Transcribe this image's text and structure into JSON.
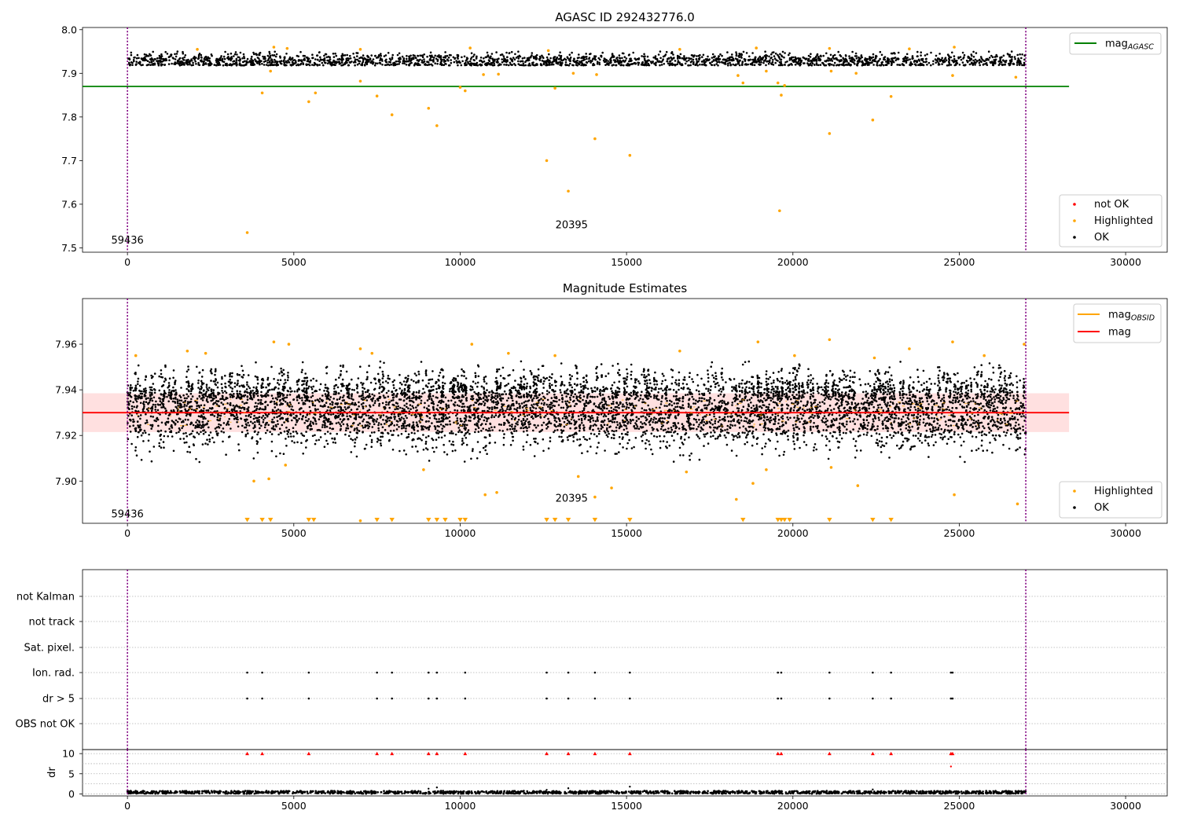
{
  "chart_data": [
    {
      "id": "agasc",
      "type": "scatter",
      "title": "AGASC ID 292432776.0",
      "xlim": [
        -1350,
        31250
      ],
      "ylim": [
        7.49,
        8.005
      ],
      "xticks": [
        0,
        5000,
        10000,
        15000,
        20000,
        25000,
        30000
      ],
      "xtick_labels": [
        "0",
        "5000",
        "10000",
        "15000",
        "20000",
        "25000",
        "30000"
      ],
      "yticks": [
        7.5,
        7.6,
        7.7,
        7.8,
        7.9,
        8.0
      ],
      "ytick_labels": [
        "7.5",
        "7.6",
        "7.7",
        "7.8",
        "7.9",
        "8.0"
      ],
      "ok_band": {
        "x_start": 0,
        "x_end": 27000,
        "y_center": 7.928,
        "y_half_width": 0.009,
        "y_min": 7.918,
        "y_max": 7.95
      },
      "mag_agasc_line": {
        "y": 7.87,
        "x_start": -1350,
        "x_end": 28300,
        "color": "#008000"
      },
      "vlines": [
        0,
        27000
      ],
      "highlighted": [
        [
          3600,
          7.535
        ],
        [
          4050,
          7.855
        ],
        [
          4300,
          7.905
        ],
        [
          5450,
          7.835
        ],
        [
          5650,
          7.855
        ],
        [
          7000,
          7.882
        ],
        [
          7500,
          7.848
        ],
        [
          7950,
          7.805
        ],
        [
          9050,
          7.82
        ],
        [
          9300,
          7.78
        ],
        [
          10000,
          7.868
        ],
        [
          10150,
          7.86
        ],
        [
          10700,
          7.897
        ],
        [
          11150,
          7.898
        ],
        [
          12600,
          7.7
        ],
        [
          12850,
          7.866
        ],
        [
          13250,
          7.63
        ],
        [
          13400,
          7.9
        ],
        [
          14050,
          7.75
        ],
        [
          14100,
          7.897
        ],
        [
          15100,
          7.712
        ],
        [
          18350,
          7.895
        ],
        [
          18500,
          7.878
        ],
        [
          19200,
          7.905
        ],
        [
          19550,
          7.878
        ],
        [
          19600,
          7.585
        ],
        [
          19650,
          7.85
        ],
        [
          19750,
          7.872
        ],
        [
          21100,
          7.762
        ],
        [
          21150,
          7.905
        ],
        [
          21900,
          7.9
        ],
        [
          22400,
          7.793
        ],
        [
          22950,
          7.847
        ],
        [
          24800,
          7.895
        ],
        [
          26700,
          7.891
        ],
        [
          2100,
          7.955
        ],
        [
          4400,
          7.96
        ],
        [
          4800,
          7.957
        ],
        [
          7000,
          7.955
        ],
        [
          10300,
          7.958
        ],
        [
          12650,
          7.952
        ],
        [
          16600,
          7.955
        ],
        [
          18900,
          7.958
        ],
        [
          21100,
          7.957
        ],
        [
          23500,
          7.956
        ],
        [
          24850,
          7.96
        ]
      ],
      "not_ok": [],
      "text_labels": [
        {
          "text": "59436",
          "x": 0,
          "y": 7.51
        },
        {
          "text": "20395",
          "x": 13350,
          "y": 7.545
        }
      ],
      "legend_top": [
        {
          "label": "mag",
          "sub": "AGASC",
          "color": "#008000"
        }
      ],
      "legend_bottom": [
        {
          "label": "not OK",
          "color": "#ff0000"
        },
        {
          "label": "Highlighted",
          "color": "#ffa500"
        },
        {
          "label": "OK",
          "color": "#000000"
        }
      ]
    },
    {
      "id": "estimates",
      "type": "scatter",
      "title": "Magnitude Estimates",
      "xlim": [
        -1350,
        31250
      ],
      "ylim": [
        7.8815,
        7.98
      ],
      "xticks": [
        0,
        5000,
        10000,
        15000,
        20000,
        25000,
        30000
      ],
      "xtick_labels": [
        "0",
        "5000",
        "10000",
        "15000",
        "20000",
        "25000",
        "30000"
      ],
      "yticks": [
        7.9,
        7.92,
        7.94,
        7.96
      ],
      "ytick_labels": [
        "7.90",
        "7.92",
        "7.94",
        "7.96"
      ],
      "mag_line": {
        "y": 7.93,
        "color": "#ff0000"
      },
      "mag_band": {
        "y_min": 7.9215,
        "y_max": 7.9385,
        "x_start": -1350,
        "x_end": 28300
      },
      "ok_band": {
        "x_start": 0,
        "x_end": 27000,
        "y_center": 7.93,
        "y_half_width": 0.0075,
        "y_min": 7.908,
        "y_max": 7.953
      },
      "vlines": [
        0,
        27000
      ],
      "highlighted": [
        [
          250,
          7.955
        ],
        [
          1800,
          7.957
        ],
        [
          2350,
          7.956
        ],
        [
          3800,
          7.9
        ],
        [
          4250,
          7.901
        ],
        [
          4400,
          7.961
        ],
        [
          4750,
          7.907
        ],
        [
          4850,
          7.96
        ],
        [
          7000,
          7.958
        ],
        [
          7350,
          7.956
        ],
        [
          8900,
          7.905
        ],
        [
          10350,
          7.96
        ],
        [
          10750,
          7.894
        ],
        [
          11100,
          7.895
        ],
        [
          11450,
          7.956
        ],
        [
          12850,
          7.955
        ],
        [
          13550,
          7.902
        ],
        [
          14050,
          7.893
        ],
        [
          14550,
          7.897
        ],
        [
          16600,
          7.957
        ],
        [
          16800,
          7.904
        ],
        [
          18300,
          7.892
        ],
        [
          18800,
          7.899
        ],
        [
          18950,
          7.961
        ],
        [
          19200,
          7.905
        ],
        [
          20050,
          7.955
        ],
        [
          21100,
          7.962
        ],
        [
          21150,
          7.906
        ],
        [
          21950,
          7.898
        ],
        [
          22450,
          7.954
        ],
        [
          23500,
          7.958
        ],
        [
          24800,
          7.961
        ],
        [
          24850,
          7.894
        ],
        [
          25750,
          7.955
        ],
        [
          26750,
          7.89
        ],
        [
          26950,
          7.96
        ],
        [
          7000,
          7.8826
        ]
      ],
      "below_range_markers": [
        3600,
        4050,
        4300,
        5450,
        5600,
        7500,
        7950,
        9050,
        9300,
        9550,
        10000,
        10150,
        12600,
        12850,
        13250,
        14050,
        15100,
        18500,
        19550,
        19650,
        19750,
        19900,
        21100,
        22400,
        22950
      ],
      "text_labels": [
        {
          "text": "59436",
          "x": 0,
          "y": 7.884
        },
        {
          "text": "20395",
          "x": 13350,
          "y": 7.891
        }
      ],
      "legend_top": [
        {
          "label": "mag",
          "sub": "OBSID",
          "color": "#ffa500"
        },
        {
          "label": "mag",
          "sub": "",
          "color": "#ff0000"
        }
      ],
      "legend_bottom": [
        {
          "label": "Highlighted",
          "color": "#ffa500"
        },
        {
          "label": "OK",
          "color": "#000000"
        }
      ]
    },
    {
      "id": "flags",
      "type": "scatter",
      "xlim": [
        -1350,
        31250
      ],
      "categories": [
        "not Kalman",
        "not track",
        "Sat. pixel.",
        "Ion. rad.",
        "dr > 5",
        "OBS not OK"
      ],
      "ion_rad_x": [
        3600,
        4050,
        5450,
        7500,
        7950,
        9050,
        9300,
        10150,
        12600,
        13250,
        14050,
        15100,
        19550,
        19650,
        21100,
        22400,
        22950,
        24750,
        24800
      ],
      "dr_gt5_x": [
        3600,
        4050,
        5450,
        7500,
        7950,
        9050,
        9300,
        10150,
        12600,
        13250,
        14050,
        15100,
        19550,
        19650,
        21100,
        22400,
        22950,
        24750,
        24800
      ],
      "vlines": [
        0,
        27000
      ]
    },
    {
      "id": "dr",
      "type": "scatter",
      "ylabel": "dr",
      "xlim": [
        -1350,
        31250
      ],
      "ylim": [
        -0.5,
        11
      ],
      "xticks": [
        0,
        5000,
        10000,
        15000,
        20000,
        25000,
        30000
      ],
      "xtick_labels": [
        "0",
        "5000",
        "10000",
        "15000",
        "20000",
        "25000",
        "30000"
      ],
      "yticks": [
        0,
        5,
        10
      ],
      "ytick_labels": [
        "0",
        "5",
        "10"
      ],
      "ok_band": {
        "x_start": 0,
        "x_end": 27000,
        "y_min": 0.05,
        "y_max": 0.75
      },
      "ok_outliers": [
        [
          9050,
          1.3
        ],
        [
          9300,
          1.6
        ],
        [
          12600,
          1.0
        ],
        [
          13250,
          1.4
        ],
        [
          15100,
          1.8
        ],
        [
          22400,
          1.1
        ]
      ],
      "capped_x": [
        3600,
        4050,
        5450,
        7500,
        7950,
        9050,
        9300,
        10150,
        12600,
        13250,
        14050,
        15100,
        19550,
        19650,
        21100,
        22400,
        22950,
        24750,
        24800
      ],
      "capped_y": 10,
      "extra_not_ok": [
        [
          24750,
          6.8
        ]
      ],
      "vlines": [
        0,
        27000
      ]
    }
  ]
}
